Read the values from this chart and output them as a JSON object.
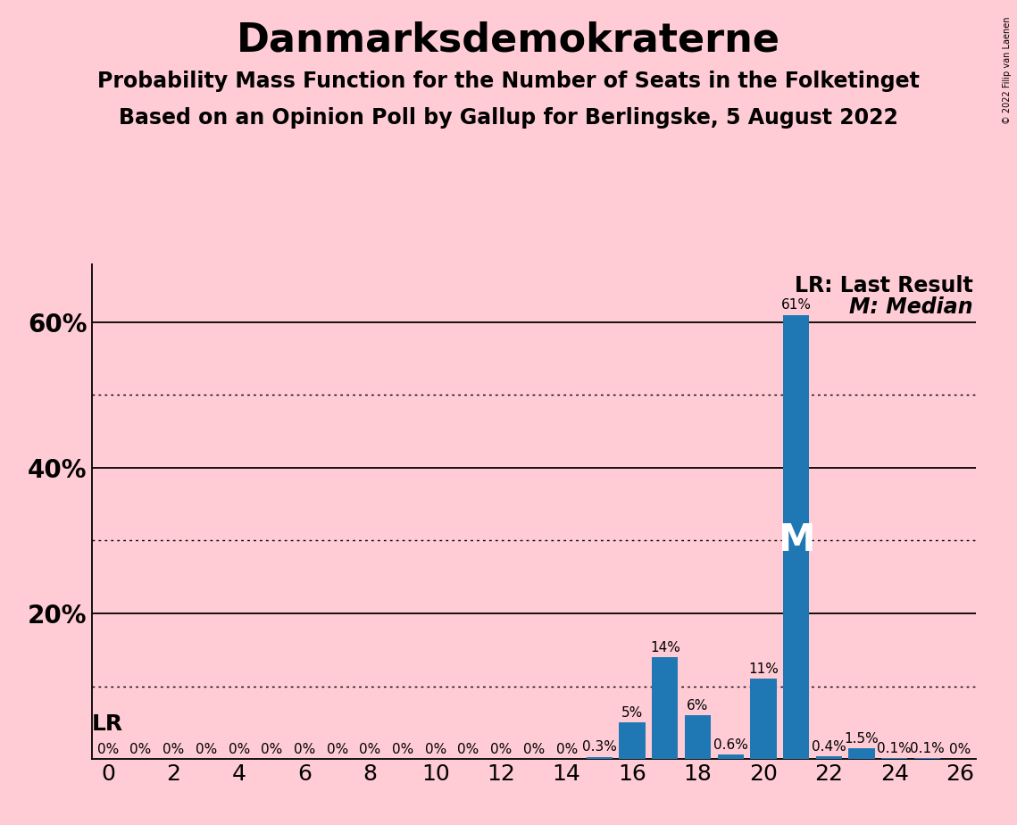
{
  "title": "Danmarksdemokraterne",
  "subtitle1": "Probability Mass Function for the Number of Seats in the Folketinget",
  "subtitle2": "Based on an Opinion Poll by Gallup for Berlingske, 5 August 2022",
  "copyright": "© 2022 Filip van Laenen",
  "background_color": "#FFCCD5",
  "bar_color": "#1F78B4",
  "seats": [
    0,
    1,
    2,
    3,
    4,
    5,
    6,
    7,
    8,
    9,
    10,
    11,
    12,
    13,
    14,
    15,
    16,
    17,
    18,
    19,
    20,
    21,
    22,
    23,
    24,
    25,
    26
  ],
  "probabilities": [
    0.0,
    0.0,
    0.0,
    0.0,
    0.0,
    0.0,
    0.0,
    0.0,
    0.0,
    0.0,
    0.0,
    0.0,
    0.0,
    0.0,
    0.0,
    0.003,
    0.05,
    0.14,
    0.06,
    0.006,
    0.11,
    0.61,
    0.004,
    0.015,
    0.001,
    0.001,
    0.0
  ],
  "labels": [
    "0%",
    "0%",
    "0%",
    "0%",
    "0%",
    "0%",
    "0%",
    "0%",
    "0%",
    "0%",
    "0%",
    "0%",
    "0%",
    "0%",
    "0%",
    "0.3%",
    "5%",
    "14%",
    "6%",
    "0.6%",
    "11%",
    "61%",
    "0.4%",
    "1.5%",
    "0.1%",
    "0.1%",
    "0%"
  ],
  "median": 21,
  "last_result": 0,
  "xlim": [
    -0.5,
    26.5
  ],
  "ylim": [
    0,
    0.68
  ],
  "solid_yticks": [
    0.2,
    0.4,
    0.6
  ],
  "dotted_yticks": [
    0.1,
    0.3,
    0.5
  ],
  "ytick_positions": [
    0.2,
    0.4,
    0.6
  ],
  "ytick_labels": [
    "20%",
    "40%",
    "60%"
  ],
  "xticks": [
    0,
    2,
    4,
    6,
    8,
    10,
    12,
    14,
    16,
    18,
    20,
    22,
    24,
    26
  ],
  "legend_lr": "LR: Last Result",
  "legend_m": "M: Median",
  "lr_annotation": "LR",
  "m_annotation": "M",
  "title_fontsize": 32,
  "subtitle_fontsize": 17,
  "ytick_fontsize": 20,
  "xtick_fontsize": 18,
  "bar_label_fontsize": 11,
  "legend_fontsize": 17,
  "lr_fontsize": 18,
  "m_fontsize": 30
}
